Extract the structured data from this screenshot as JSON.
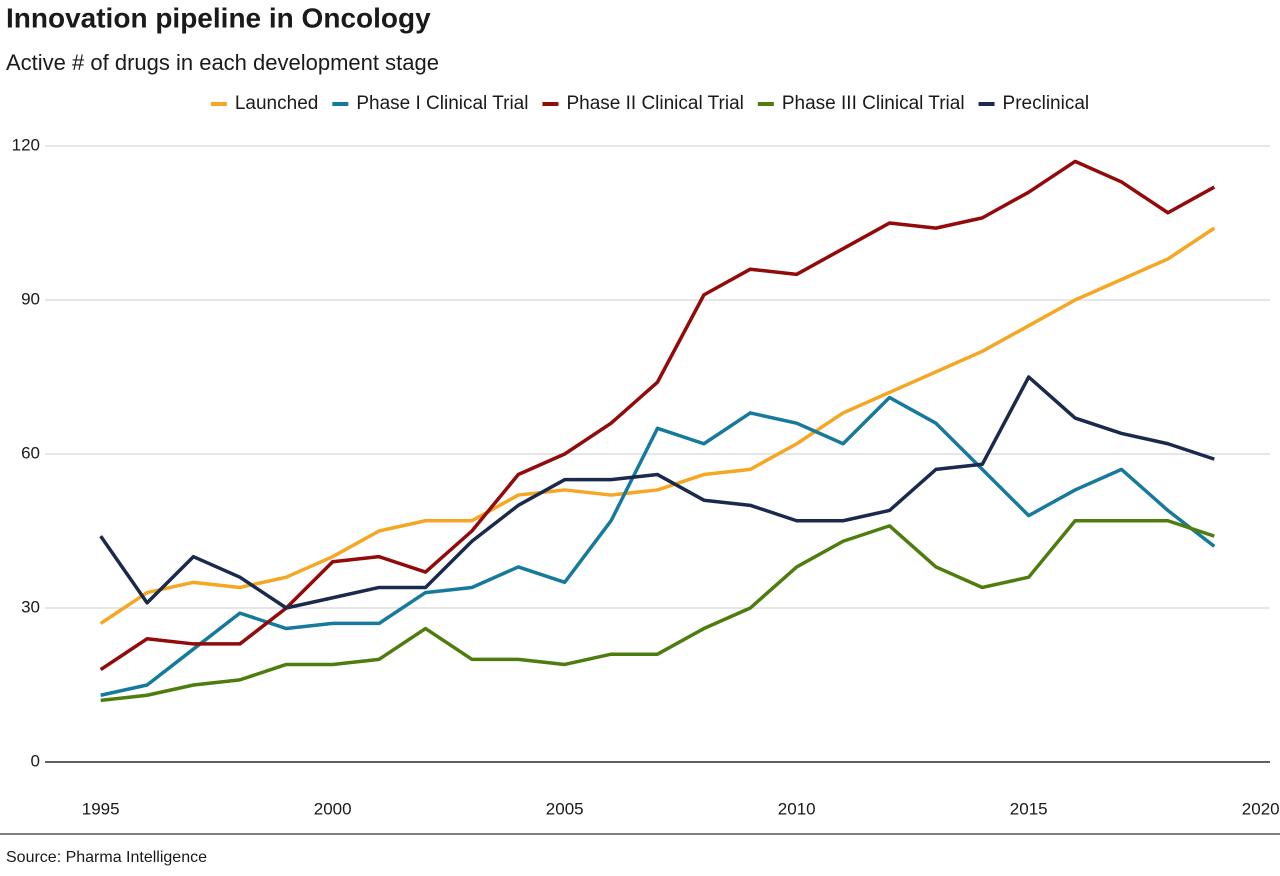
{
  "chart_data": {
    "type": "line",
    "title": "Innovation pipeline in Oncology",
    "subtitle": "Active # of drugs in each development stage",
    "source": "Source: Pharma Intelligence",
    "x": [
      1995,
      1996,
      1997,
      1998,
      1999,
      2000,
      2001,
      2002,
      2003,
      2004,
      2005,
      2006,
      2007,
      2008,
      2009,
      2010,
      2011,
      2012,
      2013,
      2014,
      2015,
      2016,
      2017,
      2018,
      2019
    ],
    "series": [
      {
        "name": "Launched",
        "color": "#f5a623",
        "values": [
          27,
          33,
          35,
          34,
          36,
          40,
          45,
          47,
          47,
          52,
          53,
          52,
          53,
          56,
          57,
          62,
          68,
          72,
          76,
          80,
          85,
          90,
          94,
          98,
          104
        ]
      },
      {
        "name": "Phase I Clinical Trial",
        "color": "#167a9c",
        "values": [
          13,
          15,
          22,
          29,
          26,
          27,
          27,
          33,
          34,
          38,
          35,
          47,
          65,
          62,
          68,
          66,
          62,
          71,
          66,
          57,
          48,
          53,
          57,
          49,
          42
        ]
      },
      {
        "name": "Phase II Clinical Trial",
        "color": "#920a0a",
        "values": [
          18,
          24,
          23,
          23,
          30,
          39,
          40,
          37,
          45,
          56,
          60,
          66,
          74,
          91,
          96,
          95,
          100,
          105,
          104,
          106,
          111,
          117,
          113,
          107,
          112
        ]
      },
      {
        "name": "Phase III Clinical Trial",
        "color": "#4e7d0e",
        "values": [
          12,
          13,
          15,
          16,
          19,
          19,
          20,
          26,
          20,
          20,
          19,
          21,
          21,
          26,
          30,
          38,
          43,
          46,
          38,
          34,
          36,
          47,
          47,
          47,
          44
        ]
      },
      {
        "name": "Preclinical",
        "color": "#1a2a4c",
        "values": [
          44,
          31,
          40,
          36,
          30,
          32,
          34,
          34,
          43,
          50,
          55,
          55,
          56,
          51,
          50,
          47,
          47,
          49,
          57,
          58,
          75,
          67,
          64,
          62,
          59
        ]
      }
    ],
    "xlim": [
      1993.8,
      2020.2
    ],
    "xticks": [
      1995,
      2000,
      2005,
      2010,
      2015,
      2020
    ],
    "ylim": [
      0,
      120
    ],
    "yticks": [
      0,
      30,
      60,
      90,
      120
    ],
    "grid": true,
    "legend": "top"
  }
}
